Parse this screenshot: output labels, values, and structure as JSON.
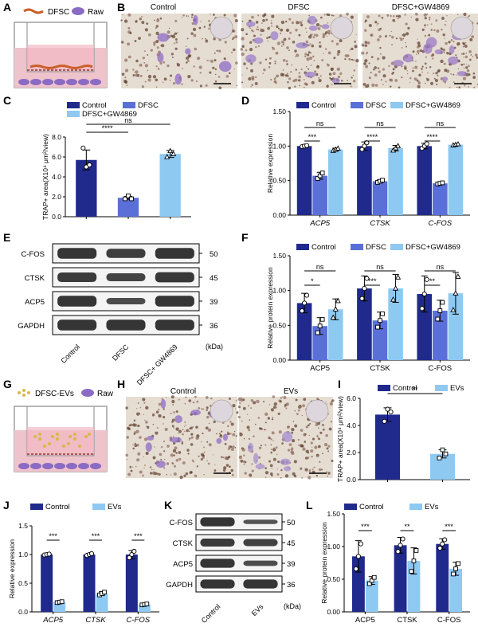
{
  "colors": {
    "control": "#1f2a8c",
    "dfsc": "#5b6fd8",
    "gw": "#8ec9f2",
    "evs": "#8ec9f2",
    "sig": "#000000",
    "medium_pink": "#efc3cc",
    "cell_purple": "#8a6bc4",
    "dfsc_orange": "#c8602a"
  },
  "panels": {
    "A": {
      "letter": "A",
      "legend": [
        "DFSC",
        "Raw"
      ]
    },
    "B": {
      "letter": "B",
      "titles": [
        "Control",
        "DFSC",
        "DFSC+GW4869"
      ]
    },
    "C": {
      "letter": "C"
    },
    "D": {
      "letter": "D"
    },
    "E": {
      "letter": "E",
      "rows": [
        "C-FOS",
        "CTSK",
        "ACP5",
        "GAPDH"
      ],
      "kda": [
        "50",
        "45",
        "39",
        "36"
      ],
      "lanes": [
        "Control",
        "DFSC",
        "DFSC+ GW4869"
      ],
      "unit": "(kDa)"
    },
    "F": {
      "letter": "F"
    },
    "G": {
      "letter": "G",
      "legend": [
        "DFSC-EVs",
        "Raw"
      ]
    },
    "H": {
      "letter": "H",
      "titles": [
        "Control",
        "EVs"
      ]
    },
    "I": {
      "letter": "I"
    },
    "J": {
      "letter": "J"
    },
    "K": {
      "letter": "K",
      "rows": [
        "C-FOS",
        "CTSK",
        "ACP5",
        "GAPDH"
      ],
      "kda": [
        "50",
        "45",
        "39",
        "36"
      ],
      "lanes": [
        "Control",
        "EVs"
      ],
      "unit": "(kDa)"
    },
    "L": {
      "letter": "L"
    }
  },
  "chart_data": [
    {
      "panel": "C",
      "type": "bar",
      "categories": [
        "Control",
        "DFSC",
        "DFSC+GW4869"
      ],
      "values": [
        5.7,
        1.9,
        6.3
      ],
      "errors": [
        1.0,
        0.15,
        0.35
      ],
      "points": [
        [
          6.9,
          5.0,
          5.2
        ],
        [
          1.8,
          2.1,
          1.8
        ],
        [
          6.0,
          6.6,
          6.3
        ]
      ],
      "ylabel": "TRAP+ area(X10⁴ μm²/view)",
      "ylim": [
        0,
        8
      ],
      "yticks": [
        "0.0",
        "2.0",
        "4.0",
        "6.0",
        "8.0"
      ],
      "legend": [
        "Control",
        "DFSC",
        "DFSC+GW4869"
      ],
      "significance": [
        {
          "from": 0,
          "to": 1,
          "label": "****"
        },
        {
          "from": 0,
          "to": 2,
          "label": "ns"
        }
      ]
    },
    {
      "panel": "D",
      "type": "bar",
      "categories": [
        "ACP5",
        "CTSK",
        "C-FOS"
      ],
      "series": [
        {
          "name": "Control",
          "values": [
            1.0,
            1.0,
            1.0
          ],
          "errors": [
            0.01,
            0.06,
            0.04
          ]
        },
        {
          "name": "DFSC",
          "values": [
            0.57,
            0.49,
            0.46
          ],
          "errors": [
            0.05,
            0.02,
            0.01
          ]
        },
        {
          "name": "DFSC+GW4869",
          "values": [
            0.95,
            0.97,
            1.02
          ],
          "errors": [
            0.02,
            0.04,
            0.01
          ]
        }
      ],
      "ylabel": "Relative expression",
      "ylim": [
        0,
        1.5
      ],
      "yticks": [
        "0.00",
        "0.50",
        "1.00",
        "1.50"
      ],
      "significance": [
        {
          "group": 0,
          "from": 0,
          "to": 1,
          "label": "***"
        },
        {
          "group": 0,
          "from": 0,
          "to": 2,
          "label": "ns"
        },
        {
          "group": 1,
          "from": 0,
          "to": 1,
          "label": "****"
        },
        {
          "group": 1,
          "from": 0,
          "to": 2,
          "label": "ns"
        },
        {
          "group": 2,
          "from": 0,
          "to": 1,
          "label": "****"
        },
        {
          "group": 2,
          "from": 0,
          "to": 2,
          "label": "ns"
        }
      ]
    },
    {
      "panel": "F",
      "type": "bar",
      "categories": [
        "ACP5",
        "CTSK",
        "C-FOS"
      ],
      "series": [
        {
          "name": "Control",
          "values": [
            0.82,
            1.03,
            0.95
          ],
          "errors": [
            0.14,
            0.18,
            0.26
          ]
        },
        {
          "name": "DFSC",
          "values": [
            0.49,
            0.57,
            0.71
          ],
          "errors": [
            0.12,
            0.12,
            0.15
          ]
        },
        {
          "name": "DFSC+GW4869",
          "values": [
            0.73,
            1.03,
            0.96
          ],
          "errors": [
            0.15,
            0.2,
            0.3
          ]
        }
      ],
      "ylabel": "Relative protein expression",
      "ylim": [
        0,
        1.5
      ],
      "yticks": [
        "0.00",
        "0.50",
        "1.00",
        "1.50"
      ],
      "significance": [
        {
          "group": 0,
          "from": 0,
          "to": 1,
          "label": "*"
        },
        {
          "group": 0,
          "from": 0,
          "to": 2,
          "label": "ns"
        },
        {
          "group": 1,
          "from": 0,
          "to": 1,
          "label": "***"
        },
        {
          "group": 1,
          "from": 0,
          "to": 2,
          "label": "ns"
        },
        {
          "group": 2,
          "from": 0,
          "to": 1,
          "label": "**"
        },
        {
          "group": 2,
          "from": 0,
          "to": 2,
          "label": "ns"
        }
      ]
    },
    {
      "panel": "I",
      "type": "bar",
      "categories": [
        "Control",
        "EVs"
      ],
      "values": [
        4.8,
        1.9
      ],
      "errors": [
        0.5,
        0.3
      ],
      "points": [
        [
          4.3,
          5.2,
          5.0
        ],
        [
          1.6,
          2.2,
          1.9
        ]
      ],
      "ylabel": "TRAP+ area(X10⁴ μm²/view)",
      "ylim": [
        0,
        6
      ],
      "yticks": [
        "0.0",
        "2.0",
        "4.0",
        "6.0"
      ],
      "legend": [
        "Control",
        "EVs"
      ],
      "significance": [
        {
          "from": 0,
          "to": 1,
          "label": "**"
        }
      ]
    },
    {
      "panel": "J",
      "type": "bar",
      "categories": [
        "ACP5",
        "CTSK",
        "C-FOS"
      ],
      "series": [
        {
          "name": "Control",
          "values": [
            1.0,
            1.0,
            1.0
          ],
          "errors": [
            0.01,
            0.02,
            0.07
          ]
        },
        {
          "name": "EVs",
          "values": [
            0.17,
            0.32,
            0.13
          ],
          "errors": [
            0.01,
            0.03,
            0.01
          ]
        }
      ],
      "ylabel": "Relative expression",
      "ylim": [
        0,
        1.5
      ],
      "yticks": [
        "0.0",
        "0.5",
        "1.0",
        "1.5"
      ],
      "significance": [
        {
          "group": 0,
          "from": 0,
          "to": 1,
          "label": "***"
        },
        {
          "group": 1,
          "from": 0,
          "to": 1,
          "label": "***"
        },
        {
          "group": 2,
          "from": 0,
          "to": 1,
          "label": "***"
        }
      ]
    },
    {
      "panel": "L",
      "type": "bar",
      "categories": [
        "ACP5",
        "CTSK",
        "C-FOS"
      ],
      "series": [
        {
          "name": "Control",
          "values": [
            0.85,
            1.02,
            1.04
          ],
          "errors": [
            0.24,
            0.12,
            0.08
          ]
        },
        {
          "name": "EVs",
          "values": [
            0.48,
            0.78,
            0.66
          ],
          "errors": [
            0.06,
            0.2,
            0.1
          ]
        }
      ],
      "ylabel": "Relative protein expression",
      "ylim": [
        0,
        1.5
      ],
      "yticks": [
        "0.00",
        "0.50",
        "1.00",
        "1.50"
      ],
      "significance": [
        {
          "group": 0,
          "from": 0,
          "to": 1,
          "label": "***"
        },
        {
          "group": 1,
          "from": 0,
          "to": 1,
          "label": "**"
        },
        {
          "group": 2,
          "from": 0,
          "to": 1,
          "label": "***"
        }
      ]
    }
  ]
}
